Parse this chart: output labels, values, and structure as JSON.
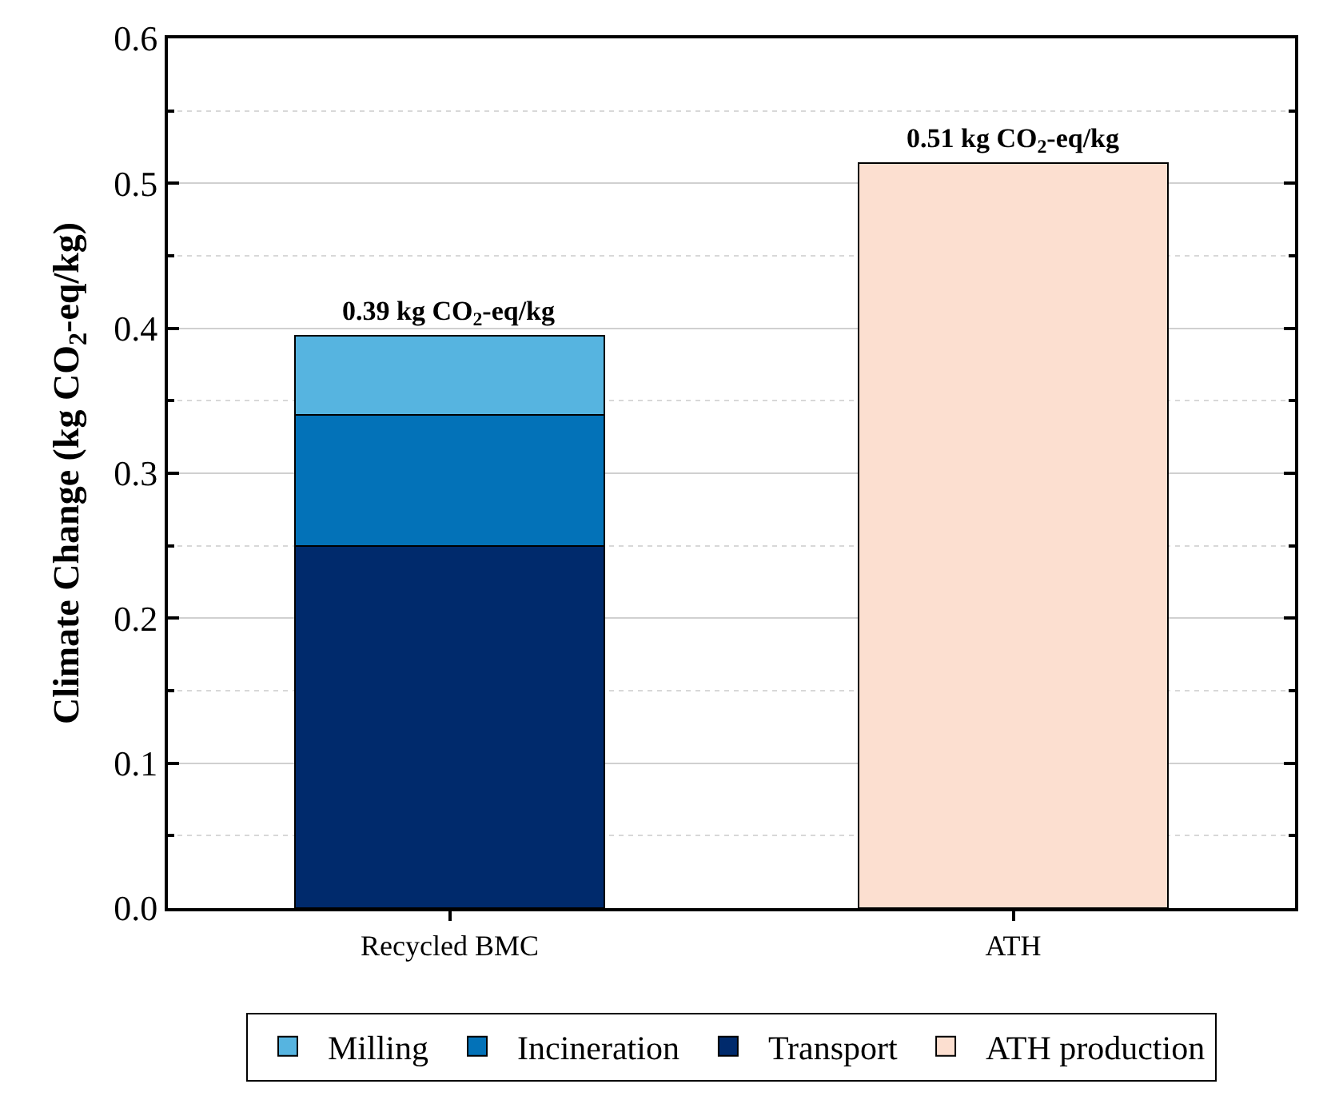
{
  "chart_data": {
    "type": "bar",
    "stacked": true,
    "ylabel": "Climate Change (kg CO$_{2}$-eq/kg)",
    "categories": [
      "Recycled BMC",
      "ATH"
    ],
    "series": [
      {
        "name": "Transport",
        "color": "#002a6c",
        "values": [
          0.25,
          null
        ]
      },
      {
        "name": "Incineration",
        "color": "#0372b8",
        "values": [
          0.09,
          null
        ]
      },
      {
        "name": "Milling",
        "color": "#56b4e0",
        "values": [
          0.055,
          null
        ]
      },
      {
        "name": "ATH production",
        "color": "#fcdfd0",
        "values": [
          null,
          0.514
        ]
      }
    ],
    "totals": [
      "0.39 kg CO$_{2}$-eq/kg",
      "0.51 kg CO$_{2}$-eq/kg"
    ],
    "ylim": [
      0,
      0.6
    ],
    "yticks": [
      {
        "value": 0,
        "label": "0.0"
      },
      {
        "value": 0.05,
        "label": null
      },
      {
        "value": 0.1,
        "label": "0.1"
      },
      {
        "value": 0.15,
        "label": null
      },
      {
        "value": 0.2,
        "label": "0.2"
      },
      {
        "value": 0.25,
        "label": null
      },
      {
        "value": 0.3,
        "label": "0.3"
      },
      {
        "value": 0.35,
        "label": null
      },
      {
        "value": 0.4,
        "label": "0.4"
      },
      {
        "value": 0.45,
        "label": null
      },
      {
        "value": 0.5,
        "label": "0.5"
      },
      {
        "value": 0.55,
        "label": null
      },
      {
        "value": 0.6,
        "label": "0.6"
      }
    ],
    "grid": true,
    "legend": "bottom"
  }
}
